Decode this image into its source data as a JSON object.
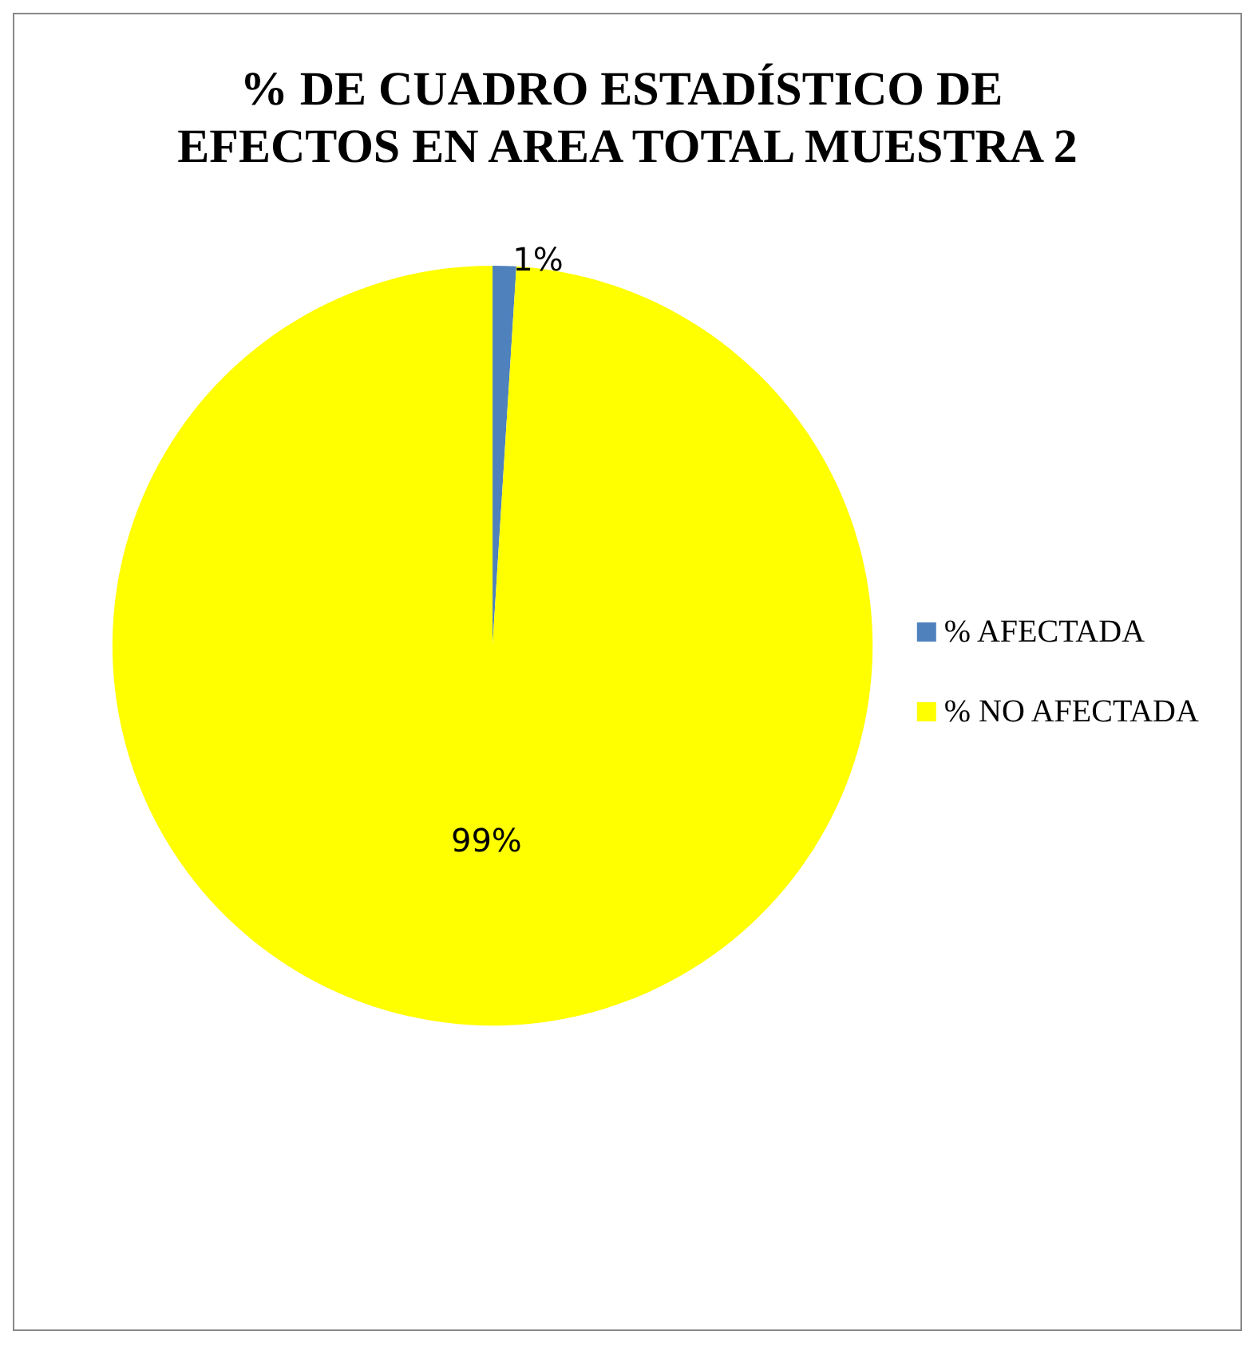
{
  "chart_data": {
    "type": "pie",
    "title": "% DE CUADRO ESTADÍSTICO DE EFECTOS EN AREA TOTAL MUESTRA 2",
    "categories": [
      "% AFECTADA",
      "% NO AFECTADA"
    ],
    "values": [
      1,
      99
    ],
    "colors": [
      "#4f81bd",
      "#ffff00"
    ],
    "value_labels": [
      "1%",
      "99%"
    ],
    "legend": "right"
  }
}
